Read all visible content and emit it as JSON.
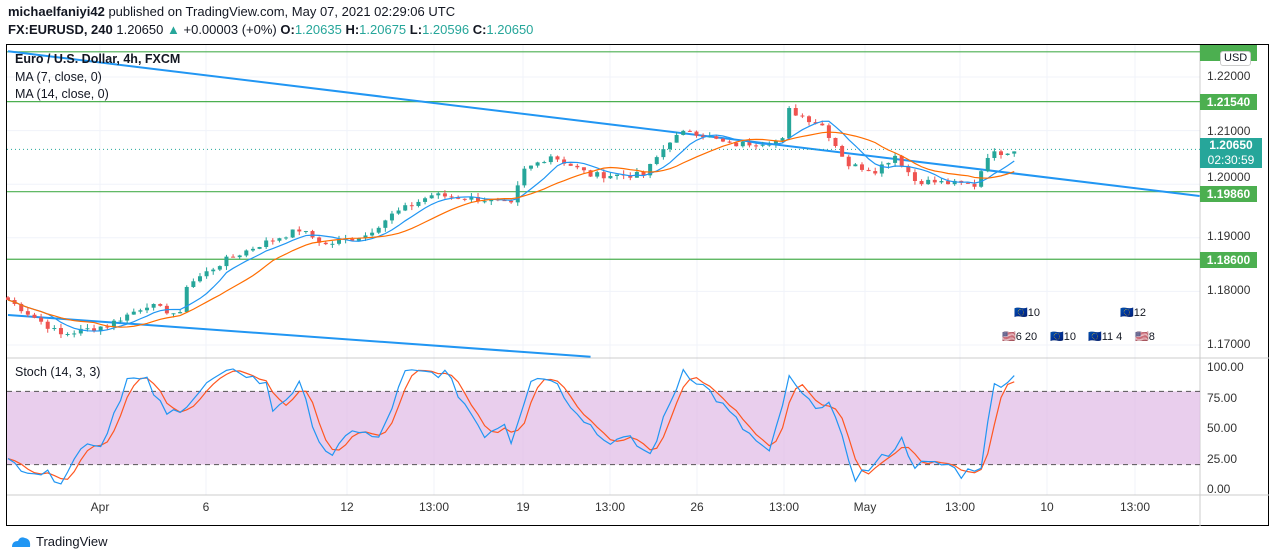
{
  "header": {
    "author": "michaelfaniyi42",
    "published": "published on TradingView.com, May 07, 2021 02:29:06 UTC",
    "symbol": "FX:EURUSD, 240",
    "price": "1.20650",
    "change": "+0.00003 (+0%)",
    "o_label": "O:",
    "o": "1.20635",
    "h_label": "H:",
    "h": "1.20675",
    "l_label": "L:",
    "l": "1.20596",
    "c_label": "C:",
    "c": "1.20650"
  },
  "legend": {
    "title": "Euro / U.S. Dollar, 4h, FXCM",
    "ma7": "MA (7, close, 0)",
    "ma14": "MA (14, close, 0)",
    "stoch": "Stoch (14, 3, 3)"
  },
  "currency": "USD",
  "current_price": {
    "value": "1.20650",
    "countdown": "02:30:59"
  },
  "levels": [
    "1.21540",
    "1.19860",
    "1.18600"
  ],
  "events": {
    "e1": "10",
    "e2": "12",
    "e3": "6 20",
    "e4": "10",
    "e5": "11 4",
    "e6": "8"
  },
  "footer": {
    "brand": "TradingView"
  },
  "colors": {
    "up": "#26a69a",
    "down": "#ef5350",
    "ma7": "#2196f3",
    "ma14": "#ff6d00",
    "level": "#4caf50",
    "trend": "#2196f3",
    "stochK": "#2196f3",
    "stochD": "#ff5722",
    "band": "#e1bee7"
  },
  "chart_data": [
    {
      "type": "candlestick",
      "title": "Euro / U.S. Dollar, 4h, FXCM",
      "ylim": [
        1.1665,
        1.2285
      ],
      "yticks": [
        "1.22000",
        "1.21000",
        "1.20000",
        "1.19000",
        "1.18000",
        "1.17000"
      ],
      "xticks": [
        "Apr",
        "6",
        "12",
        "13:00",
        "19",
        "13:00",
        "26",
        "13:00",
        "May",
        "13:00",
        "10",
        "13:00"
      ],
      "close_waypoints": [
        [
          0,
          1.1784
        ],
        [
          8,
          1.1719
        ],
        [
          15,
          1.1737
        ],
        [
          21,
          1.1775
        ],
        [
          26,
          1.1756
        ],
        [
          27,
          1.1812
        ],
        [
          33,
          1.1859
        ],
        [
          38,
          1.1887
        ],
        [
          44,
          1.1915
        ],
        [
          48,
          1.1887
        ],
        [
          54,
          1.1905
        ],
        [
          58,
          1.1943
        ],
        [
          64,
          1.198
        ],
        [
          72,
          1.1971
        ],
        [
          76,
          1.1961
        ],
        [
          78,
          1.2026
        ],
        [
          82,
          1.2054
        ],
        [
          88,
          1.2017
        ],
        [
          96,
          1.2017
        ],
        [
          100,
          1.2082
        ],
        [
          103,
          1.2101
        ],
        [
          109,
          1.2073
        ],
        [
          117,
          1.2082
        ],
        [
          118,
          1.2138
        ],
        [
          123,
          1.211
        ],
        [
          127,
          1.2036
        ],
        [
          131,
          1.2026
        ],
        [
          134,
          1.2054
        ],
        [
          137,
          1.2007
        ],
        [
          142,
          1.2002
        ],
        [
          146,
          1.1998
        ],
        [
          148,
          1.2054
        ],
        [
          152,
          1.2065
        ]
      ],
      "horizontal_levels": [
        1.2247,
        1.2154,
        1.1986,
        1.186
      ],
      "trendlines": [
        [
          [
            0,
            1.2248
          ],
          [
            180,
            1.1978
          ]
        ],
        [
          [
            0,
            1.1756
          ],
          [
            88,
            1.1678
          ]
        ]
      ]
    },
    {
      "type": "line",
      "title": "Stoch (14, 3, 3)",
      "ylim": [
        0,
        100
      ],
      "yticks": [
        "100.00",
        "75.00",
        "50.00",
        "25.00",
        "0.00"
      ],
      "bands": [
        20,
        80
      ],
      "k_waypoints": [
        [
          0,
          22
        ],
        [
          8,
          8
        ],
        [
          12,
          40
        ],
        [
          14,
          35
        ],
        [
          18,
          90
        ],
        [
          21,
          88
        ],
        [
          24,
          60
        ],
        [
          27,
          70
        ],
        [
          31,
          90
        ],
        [
          35,
          97
        ],
        [
          39,
          85
        ],
        [
          40,
          65
        ],
        [
          44,
          85
        ],
        [
          47,
          40
        ],
        [
          49,
          25
        ],
        [
          52,
          50
        ],
        [
          56,
          40
        ],
        [
          60,
          95
        ],
        [
          66,
          95
        ],
        [
          69,
          70
        ],
        [
          72,
          45
        ],
        [
          75,
          55
        ],
        [
          76,
          40
        ],
        [
          79,
          90
        ],
        [
          82,
          92
        ],
        [
          85,
          70
        ],
        [
          90,
          40
        ],
        [
          94,
          40
        ],
        [
          97,
          28
        ],
        [
          102,
          98
        ],
        [
          106,
          80
        ],
        [
          111,
          50
        ],
        [
          115,
          28
        ],
        [
          118,
          90
        ],
        [
          121,
          70
        ],
        [
          124,
          70
        ],
        [
          128,
          10
        ],
        [
          131,
          20
        ],
        [
          135,
          40
        ],
        [
          137,
          20
        ],
        [
          142,
          20
        ],
        [
          144,
          12
        ],
        [
          147,
          20
        ],
        [
          149,
          85
        ],
        [
          152,
          92
        ]
      ]
    }
  ]
}
